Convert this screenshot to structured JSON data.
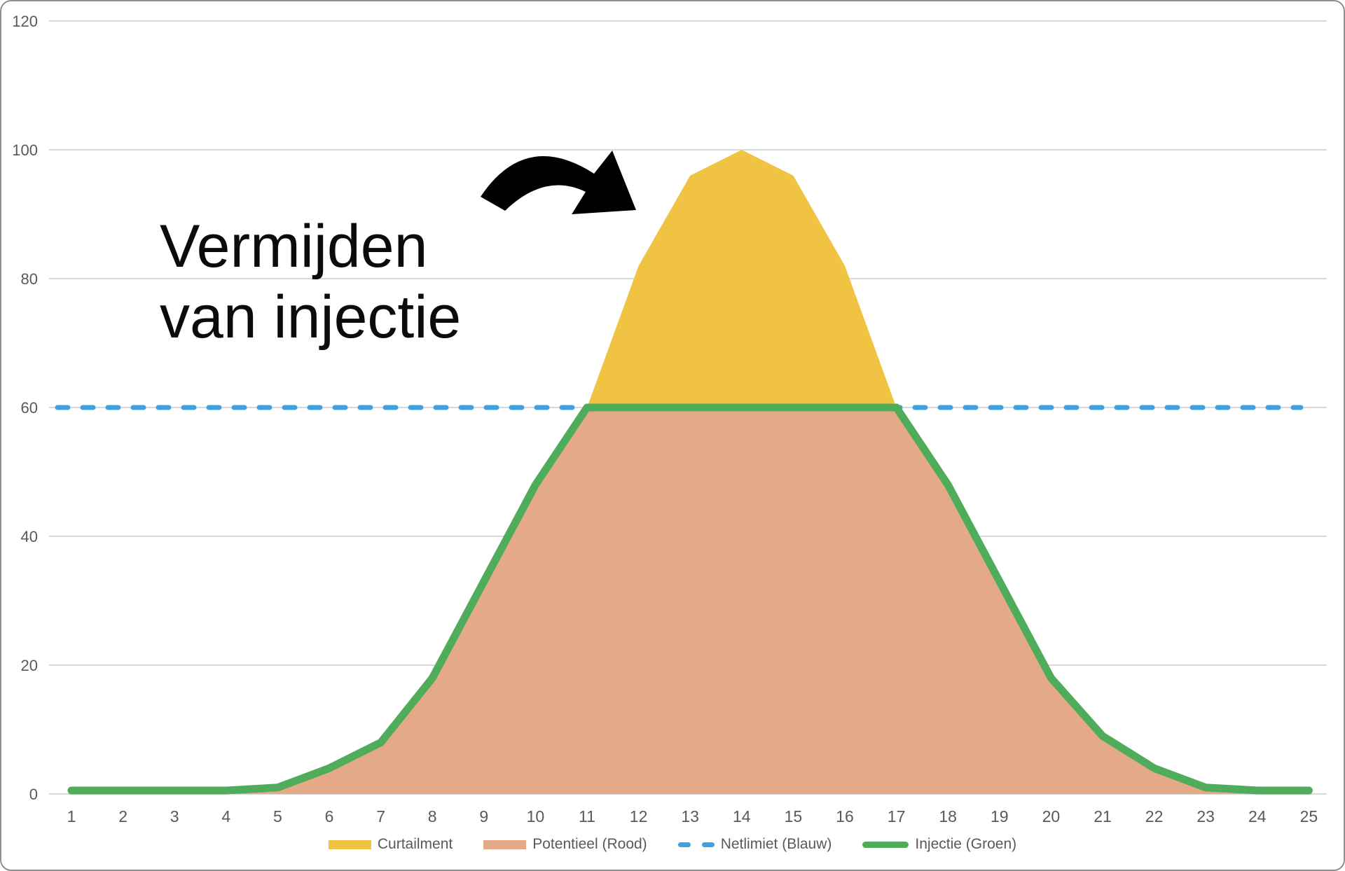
{
  "frame": {
    "background": "#ffffff",
    "border_color": "#8f8f8f"
  },
  "annotation": {
    "line1": "Vermijden",
    "line2": "van injectie"
  },
  "legend_items": [
    {
      "label": "Curtailment",
      "swatch": "rect",
      "color": "#F0C343"
    },
    {
      "label": "Potentieel (Rood)",
      "swatch": "rect",
      "color": "#E4AA88"
    },
    {
      "label": "Netlimiet (Blauw)",
      "swatch": "dashes",
      "color": "#3FA0E3"
    },
    {
      "label": "Injectie (Groen)",
      "swatch": "line",
      "color": "#4EAC5B"
    }
  ],
  "chart_data": {
    "type": "area",
    "title": "",
    "xlabel": "",
    "ylabel": "",
    "x": [
      1,
      2,
      3,
      4,
      5,
      6,
      7,
      8,
      9,
      10,
      11,
      12,
      13,
      14,
      15,
      16,
      17,
      18,
      19,
      20,
      21,
      22,
      23,
      24,
      25
    ],
    "ylim": [
      0,
      120
    ],
    "yticks": [
      0,
      20,
      40,
      60,
      80,
      100,
      120
    ],
    "grid": "horizontal",
    "grid_color": "#D9D9D9",
    "axis_text_color": "#595959",
    "legend_position": "bottom",
    "netlimiet_value": 60,
    "series": [
      {
        "name": "Curtailment",
        "type": "area",
        "color": "#F0C343",
        "values": [
          0,
          0,
          0,
          0,
          0,
          0,
          0,
          0,
          0,
          0,
          0,
          22,
          36,
          40,
          36,
          22,
          0,
          0,
          0,
          0,
          0,
          0,
          0,
          0,
          0
        ],
        "note": "overshoot above netlimiet"
      },
      {
        "name": "Potentieel (Rood)",
        "type": "area",
        "color": "#E4AA88",
        "values": [
          0,
          0,
          0,
          0,
          1,
          4,
          8,
          18,
          33,
          48,
          60,
          82,
          96,
          100,
          96,
          82,
          60,
          48,
          33,
          18,
          9,
          4,
          1,
          0,
          0
        ]
      },
      {
        "name": "Netlimiet (Blauw)",
        "type": "dashed_line",
        "color": "#3FA0E3",
        "value": 60
      },
      {
        "name": "Injectie (Groen)",
        "type": "line",
        "color": "#4EAC5B",
        "values": [
          0,
          0,
          0,
          0,
          1,
          4,
          8,
          18,
          33,
          48,
          60,
          60,
          60,
          60,
          60,
          60,
          60,
          48,
          33,
          18,
          9,
          4,
          1,
          0,
          0
        ]
      }
    ],
    "annotations": [
      {
        "text": "Vermijden van injectie",
        "target": "Curtailment peak"
      }
    ]
  }
}
